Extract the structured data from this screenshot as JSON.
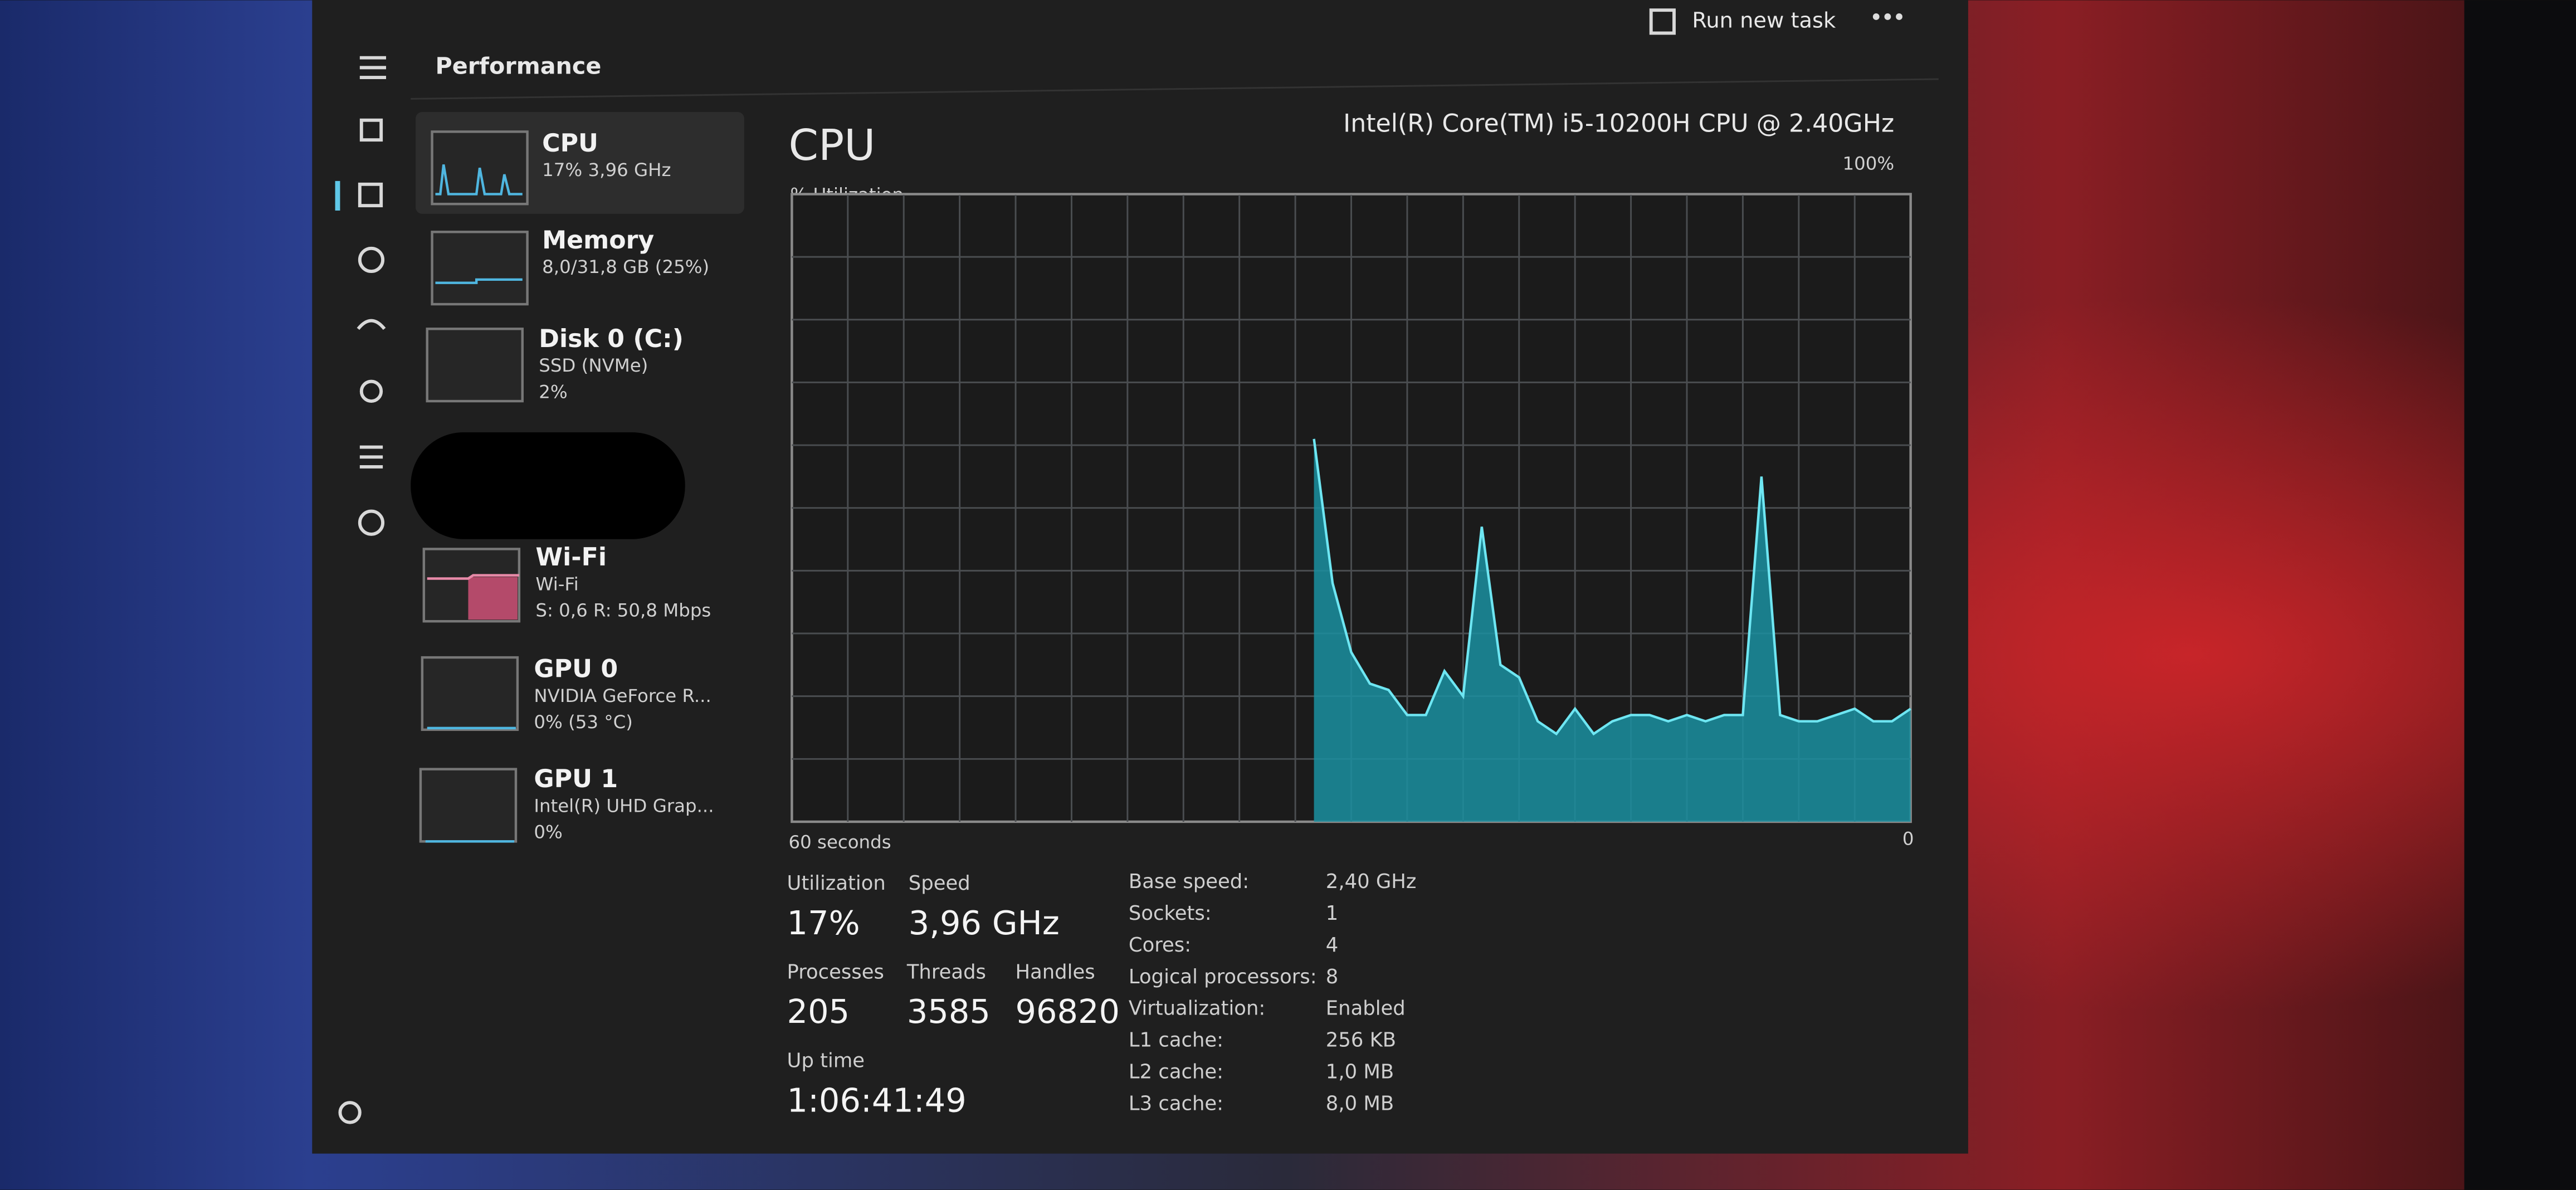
{
  "header": {
    "title": "Performance",
    "run_new_task": "Run new task"
  },
  "sidebar_items": [
    {
      "name": "CPU",
      "lines": [
        "17% 3,96 GHz"
      ]
    },
    {
      "name": "Memory",
      "lines": [
        "8,0/31,8 GB (25%)"
      ]
    },
    {
      "name": "Disk 0 (C:)",
      "lines": [
        "SSD (NVMe)",
        "2%"
      ]
    },
    {
      "name": "Wi-Fi",
      "lines": [
        "Wi-Fi",
        "S: 0,6 R: 50,8 Mbps"
      ]
    },
    {
      "name": "GPU 0",
      "lines": [
        "NVIDIA GeForce R...",
        "0% (53 °C)"
      ]
    },
    {
      "name": "GPU 1",
      "lines": [
        "Intel(R) UHD Grap...",
        "0%"
      ]
    }
  ],
  "cpu": {
    "title": "CPU",
    "model": "Intel(R) Core(TM) i5-10200H CPU @ 2.40GHz",
    "graph": {
      "type": "area",
      "y_label": "% Utilization",
      "x_start_label": "60 seconds",
      "x_end_label": "0",
      "ylim": [
        0,
        100
      ],
      "yticks": [
        {
          "value": 100,
          "label": "100%"
        }
      ],
      "color": "#1a8fa0",
      "line_color": "#6ee6f2",
      "values": [
        null,
        null,
        null,
        null,
        null,
        null,
        null,
        null,
        null,
        null,
        null,
        null,
        null,
        null,
        null,
        null,
        null,
        null,
        null,
        null,
        null,
        null,
        null,
        null,
        null,
        null,
        null,
        null,
        61,
        38,
        27,
        22,
        21,
        17,
        17,
        24,
        20,
        47,
        25,
        23,
        16,
        14,
        18,
        14,
        16,
        17,
        17,
        16,
        17,
        16,
        17,
        17,
        55,
        17,
        16,
        16,
        17,
        18,
        16,
        16,
        18
      ]
    },
    "stats": [
      {
        "label": "Utilization",
        "value": "17%"
      },
      {
        "label": "Speed",
        "value": "3,96 GHz"
      },
      {
        "label": "Processes",
        "value": "205"
      },
      {
        "label": "Threads",
        "value": "3585"
      },
      {
        "label": "Handles",
        "value": "96820"
      },
      {
        "label": "Up time",
        "value": "1:06:41:49"
      }
    ],
    "details": [
      {
        "label": "Base speed:",
        "value": "2,40 GHz"
      },
      {
        "label": "Sockets:",
        "value": "1"
      },
      {
        "label": "Cores:",
        "value": "4"
      },
      {
        "label": "Logical processors:",
        "value": "8"
      },
      {
        "label": "Virtualization:",
        "value": "Enabled"
      },
      {
        "label": "L1 cache:",
        "value": "256 KB"
      },
      {
        "label": "L2 cache:",
        "value": "1,0 MB"
      },
      {
        "label": "L3 cache:",
        "value": "8,0 MB"
      }
    ]
  }
}
